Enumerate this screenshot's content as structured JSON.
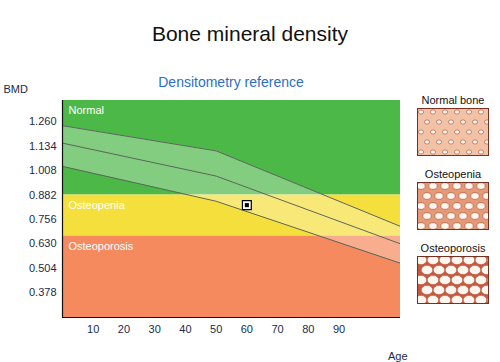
{
  "chart_data": {
    "type": "line",
    "title": "Bone mineral density",
    "subtitle": "Densitometry reference",
    "x_label": "Age",
    "y_label": "BMD",
    "x": [
      0,
      50,
      110
    ],
    "series": [
      {
        "color": "#5b665b",
        "values": [
          1.24,
          1.11,
          0.72
        ]
      },
      {
        "color": "#5b665b",
        "values": [
          1.15,
          0.98,
          0.63
        ]
      },
      {
        "color": "#5b665b",
        "values": [
          1.03,
          0.85,
          0.53
        ]
      }
    ],
    "xlim": [
      0,
      110
    ],
    "xticks": [
      10,
      20,
      30,
      40,
      50,
      60,
      70,
      80,
      90
    ],
    "ylim": [
      0.25,
      1.37
    ],
    "yticks": [
      {
        "value": 1.26,
        "label": "1.260"
      },
      1.134,
      1.008,
      0.882,
      0.756,
      {
        "value": 0.63,
        "label": "0.630"
      },
      0.504,
      0.378
    ],
    "zones": [
      {
        "label": "Normal",
        "from": 0.882,
        "to": 1.37,
        "color": "#4cb848"
      },
      {
        "label": "Osteopenia",
        "from": 0.67,
        "to": 0.882,
        "color": "#f5df3d"
      },
      {
        "label": "Osteoporosis",
        "from": 0.25,
        "to": 0.67,
        "color": "#f48a5e"
      }
    ],
    "points": [
      {
        "x": 60,
        "y": 0.83
      }
    ],
    "marker": "square",
    "illustrations": [
      "Normal bone",
      "Osteopenia",
      "Osteoporosis"
    ]
  }
}
